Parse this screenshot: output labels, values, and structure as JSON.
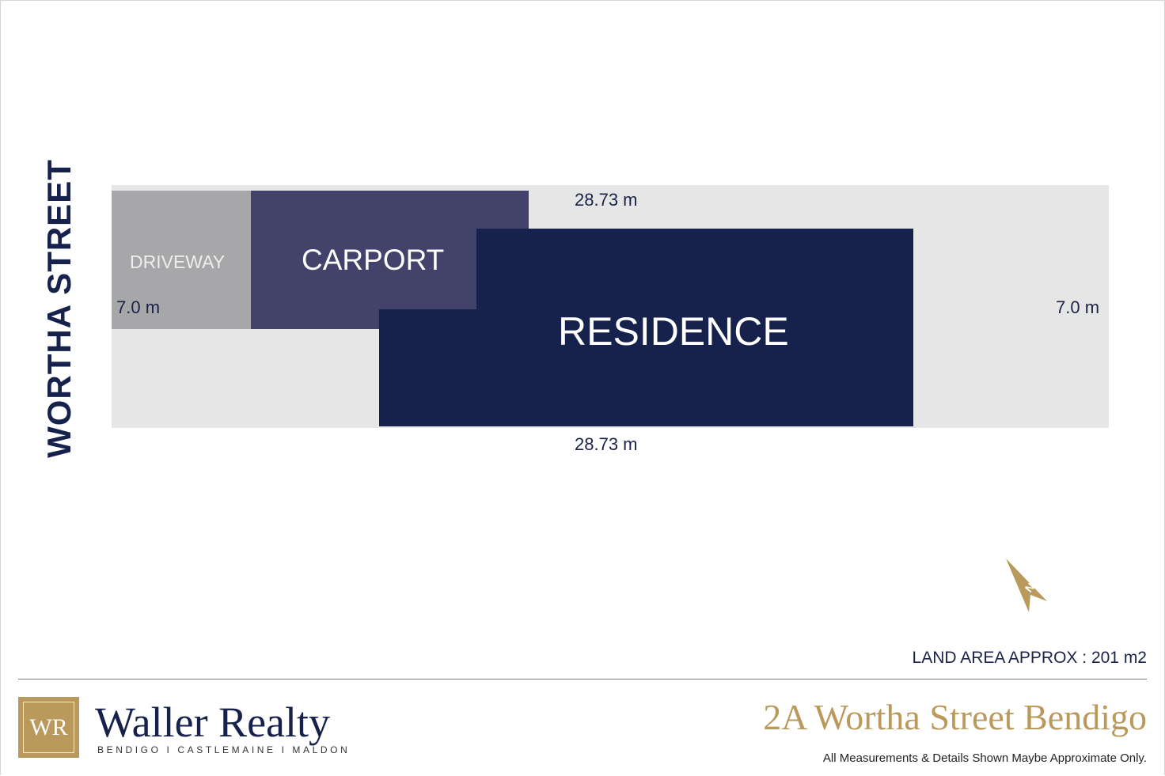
{
  "street_name": "WORTHA STREET",
  "areas": {
    "driveway": "DRIVEWAY",
    "carport": "CARPORT",
    "residence": "RESIDENCE"
  },
  "dimensions": {
    "top": "28.73 m",
    "bottom": "28.73 m",
    "left": "7.0 m",
    "right": "7.0 m"
  },
  "compass": {
    "label": "N",
    "icon": "north-arrow-icon"
  },
  "land_area": "LAND AREA APPROX : 201 m2",
  "footer": {
    "logo_mark": "WR",
    "brand": "Waller Realty",
    "tagline": "BENDIGO I CASTLEMAINE I MALDON",
    "address": "2A Wortha Street Bendigo",
    "disclaimer": "All Measurements & Details Shown Maybe Approximate Only."
  },
  "colors": {
    "navy": "#16224c",
    "carport": "#42426b",
    "driveway": "#a7a7aa",
    "lot": "#e6e6e6",
    "gold": "#b99a5c"
  }
}
